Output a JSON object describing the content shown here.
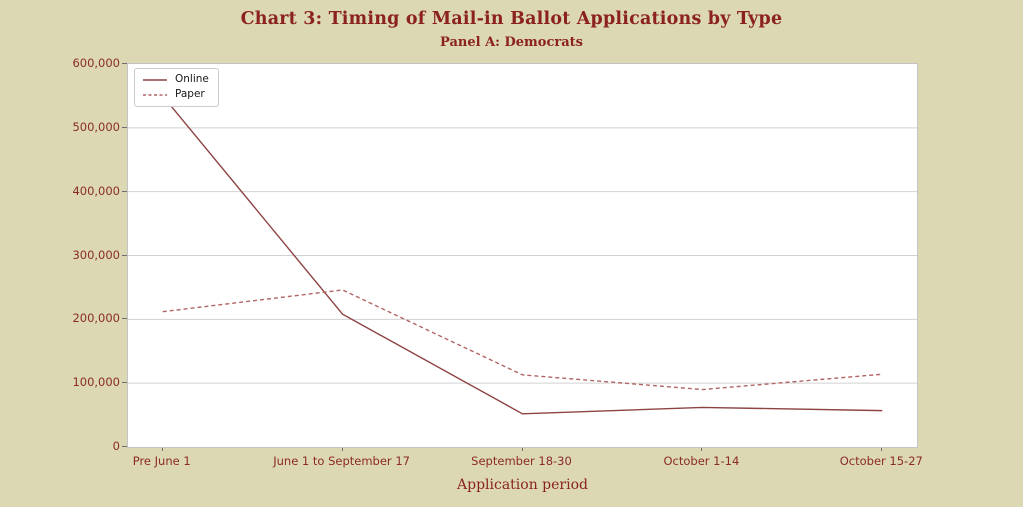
{
  "chart": {
    "title": "Chart 3: Timing of Mail-in Ballot Applications by Type",
    "subtitle": "Panel A: Democrats",
    "xlabel": "Application period"
  },
  "chart_data": {
    "type": "line",
    "title": "Chart 3: Timing of Mail-in Ballot Applications by Type",
    "subtitle": "Panel A: Democrats",
    "xlabel": "Application period",
    "ylabel": "",
    "categories": [
      "Pre June 1",
      "June 1 to September 17",
      "September 18-30",
      "October 1-14",
      "October 15-27"
    ],
    "series": [
      {
        "name": "Online",
        "style": "solid",
        "color": "#8e4343",
        "values": [
          550000,
          208000,
          52000,
          62000,
          57000
        ]
      },
      {
        "name": "Paper",
        "style": "dashed",
        "color": "#b26464",
        "values": [
          212000,
          246000,
          113000,
          90000,
          114000
        ]
      }
    ],
    "ylim": [
      0,
      600000
    ],
    "yticks": [
      0,
      100000,
      200000,
      300000,
      400000,
      500000,
      600000
    ],
    "ytick_labels": [
      "0",
      "100,000",
      "200,000",
      "300,000",
      "400,000",
      "500,000",
      "600,000"
    ],
    "grid": true,
    "legend_position": "upper left"
  },
  "colors": {
    "background": "#dcd8b4",
    "plot_background": "#ffffff",
    "gridline": "#d2d2d2",
    "plot_border": "#c4c4c4",
    "title_text": "#8b2121",
    "tick_text": "#8b2a2a",
    "online_line": "#8e4343",
    "paper_line": "#b26464"
  }
}
